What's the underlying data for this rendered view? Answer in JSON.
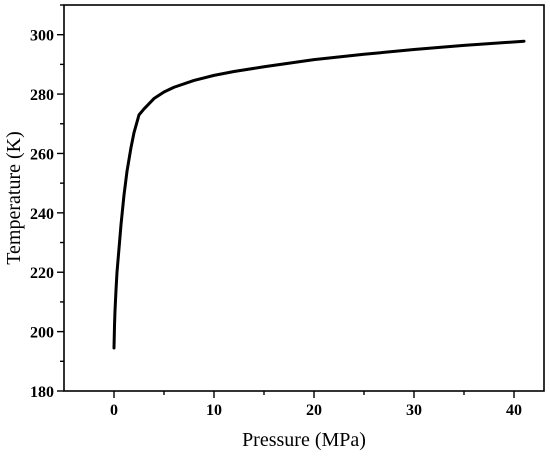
{
  "chart_data": {
    "type": "line",
    "title": "",
    "xlabel": "Pressure (MPa)",
    "ylabel": "Temperature (K)",
    "xlim": [
      -5,
      43
    ],
    "ylim": [
      180,
      310
    ],
    "xticks": [
      0,
      10,
      20,
      30,
      40
    ],
    "yticks": [
      180,
      200,
      220,
      240,
      260,
      280,
      300
    ],
    "grid": false,
    "series": [
      {
        "color": "#000000",
        "x": [
          0.0,
          0.05,
          0.1,
          0.2,
          0.3,
          0.5,
          0.7,
          1.0,
          1.3,
          1.7,
          2.0,
          2.5,
          3.0,
          4.0,
          5.0,
          6.0,
          8.0,
          10.0,
          12.0,
          15.0,
          20.0,
          25.0,
          30.0,
          35.0,
          41.0
        ],
        "y": [
          194.5,
          202,
          207,
          214,
          220,
          228,
          236,
          246,
          254,
          262,
          267,
          273,
          275,
          278.5,
          280.7,
          282.3,
          284.6,
          286.3,
          287.6,
          289.2,
          291.6,
          293.4,
          295.0,
          296.4,
          297.8
        ]
      }
    ]
  }
}
